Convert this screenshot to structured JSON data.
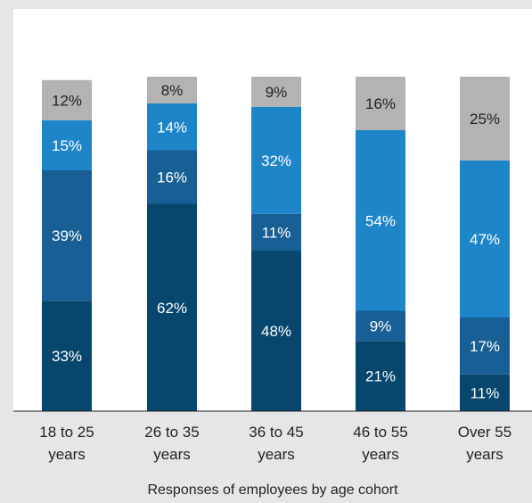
{
  "chart_data": {
    "type": "bar",
    "stacked": true,
    "title": "",
    "xlabel": "Responses of employees by age cohort",
    "ylabel": "",
    "ylim": [
      0,
      100
    ],
    "grid": false,
    "legend": "none",
    "categories": [
      "18 to 25 years",
      "26 to 35 years",
      "36 to 45 years",
      "46 to 55 years",
      "Over 55 years"
    ],
    "category_lines": [
      [
        "18 to 25",
        "years"
      ],
      [
        "26 to 35",
        "years"
      ],
      [
        "36 to 45",
        "years"
      ],
      [
        "46 to 55",
        "years"
      ],
      [
        "Over 55",
        "years"
      ]
    ],
    "series": [
      {
        "color": "#07476e",
        "values": [
          33,
          62,
          48,
          21,
          11
        ]
      },
      {
        "color": "#175f94",
        "values": [
          39,
          16,
          11,
          9,
          17
        ]
      },
      {
        "color": "#1f85c9",
        "values": [
          15,
          14,
          32,
          54,
          47
        ]
      },
      {
        "color": "#b3b3b3",
        "values": [
          12,
          8,
          9,
          16,
          25
        ]
      }
    ],
    "value_suffix": "%"
  },
  "colors": {
    "plot_background": "#ffffff",
    "page_background": "#e6e6e6",
    "axis": "#222222"
  }
}
